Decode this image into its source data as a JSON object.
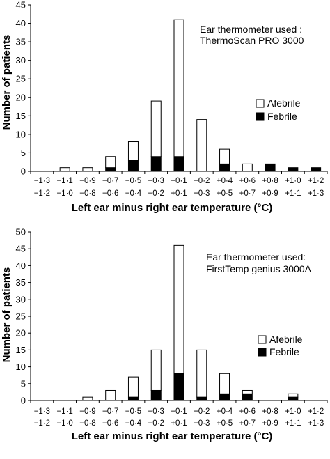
{
  "chart_data": [
    {
      "type": "bar",
      "stacked": true,
      "ylabel": "Number of patients",
      "xlabel": "Left ear minus right ear temperature (°C)",
      "annotation": [
        "Ear thermometer used :",
        "ThermoScan PRO 3000"
      ],
      "ylim": [
        0,
        45
      ],
      "yticks": [
        0,
        5,
        10,
        15,
        20,
        25,
        30,
        35,
        40,
        45
      ],
      "categories": [
        [
          "−1·3",
          "−1·2"
        ],
        [
          "−1·1",
          "−1·0"
        ],
        [
          "−0·9",
          "−0·8"
        ],
        [
          "−0·7",
          "−0·6"
        ],
        [
          "−0·5",
          "−0·4"
        ],
        [
          "−0·3",
          "−0·2"
        ],
        [
          "−0·1",
          "+0·1"
        ],
        [
          "+0·2",
          "+0·3"
        ],
        [
          "+0·4",
          "+0·5"
        ],
        [
          "+0·6",
          "+0·7"
        ],
        [
          "+0·8",
          "+0·9"
        ],
        [
          "+1·0",
          "+1·1"
        ],
        [
          "+1·2",
          "+1·3"
        ]
      ],
      "series": [
        {
          "name": "Febrile",
          "color": "#000000",
          "values": [
            0,
            0,
            0,
            1,
            3,
            4,
            4,
            0,
            2,
            0,
            2,
            1,
            1
          ]
        },
        {
          "name": "Afebrile",
          "color": "#ffffff",
          "values": [
            0,
            1,
            1,
            3,
            5,
            15,
            37,
            14,
            4,
            2,
            0,
            0,
            0
          ]
        }
      ],
      "legend": [
        {
          "name": "Afebrile",
          "color": "#ffffff"
        },
        {
          "name": "Febrile",
          "color": "#000000"
        }
      ],
      "legend_position": "right",
      "grid": false
    },
    {
      "type": "bar",
      "stacked": true,
      "ylabel": "Number of patients",
      "xlabel": "Left ear minus right ear temperature (°C)",
      "annotation": [
        "Ear thermometer used:",
        "FirstTemp genius 3000A"
      ],
      "ylim": [
        0,
        50
      ],
      "yticks": [
        0,
        5,
        10,
        15,
        20,
        25,
        30,
        35,
        40,
        45,
        50
      ],
      "categories": [
        [
          "−1·3",
          "−1·2"
        ],
        [
          "−1·1",
          "−1·0"
        ],
        [
          "−0·9",
          "−0·8"
        ],
        [
          "−0·7",
          "−0·6"
        ],
        [
          "−0·5",
          "−0·4"
        ],
        [
          "−0·3",
          "−0·2"
        ],
        [
          "−0·1",
          "+0·1"
        ],
        [
          "+0·2",
          "+0·3"
        ],
        [
          "+0·4",
          "+0·5"
        ],
        [
          "+0·6",
          "+0·7"
        ],
        [
          "+0·8",
          "+0·9"
        ],
        [
          "+1·0",
          "+1·1"
        ],
        [
          "+1·2",
          "+1·3"
        ]
      ],
      "series": [
        {
          "name": "Febrile",
          "color": "#000000",
          "values": [
            0,
            0,
            0,
            0,
            1,
            3,
            8,
            1,
            2,
            2,
            0,
            1,
            0
          ]
        },
        {
          "name": "Afebrile",
          "color": "#ffffff",
          "values": [
            0,
            0,
            1,
            3,
            6,
            12,
            38,
            14,
            6,
            1,
            0,
            1,
            0
          ]
        }
      ],
      "legend": [
        {
          "name": "Afebrile",
          "color": "#ffffff"
        },
        {
          "name": "Febrile",
          "color": "#000000"
        }
      ],
      "legend_position": "right",
      "grid": false
    }
  ]
}
